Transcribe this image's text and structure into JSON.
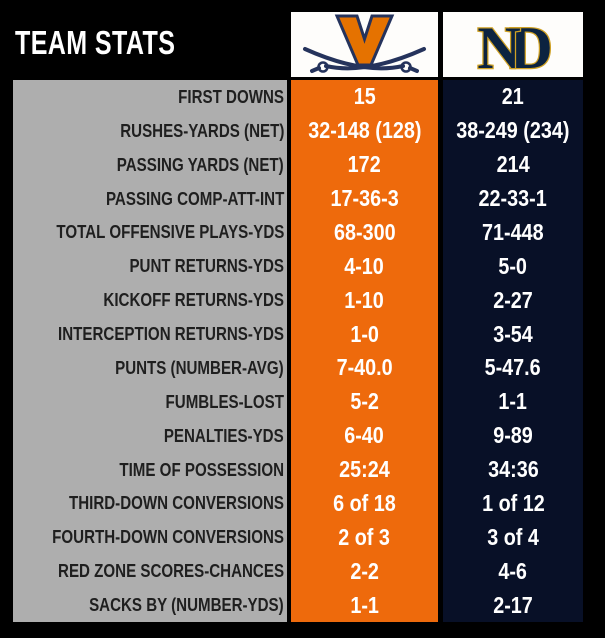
{
  "header": {
    "title": "TEAM STATS"
  },
  "teams": {
    "virginia": {
      "name": "Virginia Cavaliers",
      "logo_icon": "virginia-v-sabers-logo",
      "column_color": "#ee6a0c"
    },
    "notre_dame": {
      "name": "Notre Dame Fighting Irish",
      "logo_icon": "notre-dame-nd-monogram-logo",
      "column_color": "#081027"
    }
  },
  "colors": {
    "background": "#000000",
    "label_column_bg": "#aeaeae",
    "label_text": "#1f1f1f",
    "value_text": "#ffffff",
    "virginia_orange": "#ee6a0c",
    "notre_dame_navy": "#081027",
    "logo_box_bg": "#fefdfb",
    "virginia_logo_orange": "#e57200",
    "virginia_logo_navy": "#25335c",
    "nd_logo_navy": "#0c2340",
    "nd_logo_gold": "#cfa125"
  },
  "stats": [
    {
      "label": "FIRST DOWNS",
      "virginia": "15",
      "notre_dame": "21"
    },
    {
      "label": "RUSHES-YARDS (NET)",
      "virginia": "32-148 (128)",
      "notre_dame": "38-249 (234)"
    },
    {
      "label": "PASSING YARDS (NET)",
      "virginia": "172",
      "notre_dame": "214"
    },
    {
      "label": "PASSING COMP-ATT-INT",
      "virginia": "17-36-3",
      "notre_dame": "22-33-1"
    },
    {
      "label": "TOTAL OFFENSIVE PLAYS-YDS",
      "virginia": "68-300",
      "notre_dame": "71-448"
    },
    {
      "label": "PUNT RETURNS-YDS",
      "virginia": "4-10",
      "notre_dame": "5-0"
    },
    {
      "label": "KICKOFF RETURNS-YDS",
      "virginia": "1-10",
      "notre_dame": "2-27"
    },
    {
      "label": "INTERCEPTION RETURNS-YDS",
      "virginia": "1-0",
      "notre_dame": "3-54"
    },
    {
      "label": "PUNTS (NUMBER-AVG)",
      "virginia": "7-40.0",
      "notre_dame": "5-47.6"
    },
    {
      "label": "FUMBLES-LOST",
      "virginia": "5-2",
      "notre_dame": "1-1"
    },
    {
      "label": "PENALTIES-YDS",
      "virginia": "6-40",
      "notre_dame": "9-89"
    },
    {
      "label": "TIME OF POSSESSION",
      "virginia": "25:24",
      "notre_dame": "34:36"
    },
    {
      "label": "THIRD-DOWN CONVERSIONS",
      "virginia": "6 of 18",
      "notre_dame": "1 of 12"
    },
    {
      "label": "FOURTH-DOWN CONVERSIONS",
      "virginia": "2 of 3",
      "notre_dame": "3 of 4"
    },
    {
      "label": "RED ZONE SCORES-CHANCES",
      "virginia": "2-2",
      "notre_dame": "4-6"
    },
    {
      "label": "SACKS BY (NUMBER-YDS)",
      "virginia": "1-1",
      "notre_dame": "2-17"
    }
  ]
}
